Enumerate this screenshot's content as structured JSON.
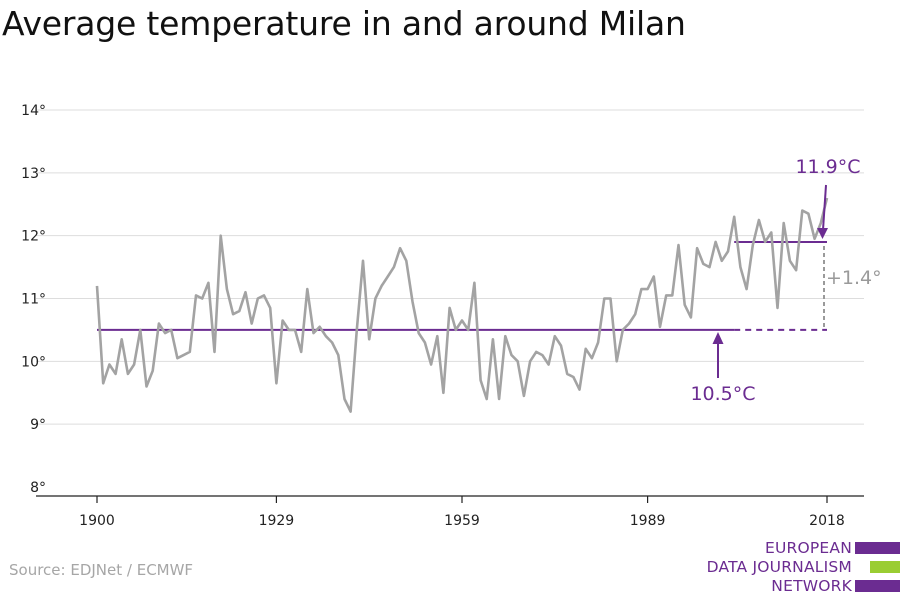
{
  "title": "Average temperature in and around Milan",
  "source": "Source: EDJNet / ECMWF",
  "logo": {
    "lines": [
      "EUROPEAN",
      "DATA JOURNALISM",
      "NETWORK"
    ],
    "colors": [
      "#6b2c91",
      "#9acd32",
      "#6b2c91"
    ]
  },
  "colors": {
    "series": "#a3a3a3",
    "accent": "#6b2c91",
    "diff": "#9a9a9a",
    "grid": "#dddddd",
    "axis": "#222222"
  },
  "chart_data": {
    "type": "line",
    "title": "Average temperature in and around Milan",
    "xlabel": "",
    "ylabel": "",
    "xlim": [
      1900,
      2018
    ],
    "ylim": [
      8,
      14
    ],
    "x_ticks": [
      "1900",
      "1929",
      "1959",
      "1989",
      "2018"
    ],
    "y_ticks": [
      "8°",
      "9°",
      "10°",
      "11°",
      "12°",
      "13°",
      "14°"
    ],
    "grid": true,
    "x": [
      1900,
      1901,
      1902,
      1903,
      1904,
      1905,
      1906,
      1907,
      1908,
      1909,
      1910,
      1911,
      1912,
      1913,
      1914,
      1915,
      1916,
      1917,
      1918,
      1919,
      1920,
      1921,
      1922,
      1923,
      1924,
      1925,
      1926,
      1927,
      1928,
      1929,
      1930,
      1931,
      1932,
      1933,
      1934,
      1935,
      1936,
      1937,
      1938,
      1939,
      1940,
      1941,
      1942,
      1943,
      1944,
      1945,
      1946,
      1947,
      1948,
      1949,
      1950,
      1951,
      1952,
      1953,
      1954,
      1955,
      1956,
      1957,
      1958,
      1959,
      1960,
      1961,
      1962,
      1963,
      1964,
      1965,
      1966,
      1967,
      1968,
      1969,
      1970,
      1971,
      1972,
      1973,
      1974,
      1975,
      1976,
      1977,
      1978,
      1979,
      1980,
      1981,
      1982,
      1983,
      1984,
      1985,
      1986,
      1987,
      1988,
      1989,
      1990,
      1991,
      1992,
      1993,
      1994,
      1995,
      1996,
      1997,
      1998,
      1999,
      2000,
      2001,
      2002,
      2003,
      2004,
      2005,
      2006,
      2007,
      2008,
      2009,
      2010,
      2011,
      2012,
      2013,
      2014,
      2015,
      2016,
      2017,
      2018
    ],
    "values": [
      11.2,
      9.65,
      9.95,
      9.8,
      10.35,
      9.8,
      9.95,
      10.5,
      9.6,
      9.85,
      10.6,
      10.45,
      10.5,
      10.05,
      10.1,
      10.15,
      11.05,
      11.0,
      11.25,
      10.15,
      12.0,
      11.15,
      10.75,
      10.8,
      11.1,
      10.6,
      11.0,
      11.05,
      10.85,
      9.65,
      10.65,
      10.5,
      10.5,
      10.15,
      11.15,
      10.45,
      10.55,
      10.4,
      10.3,
      10.1,
      9.4,
      9.2,
      10.5,
      11.6,
      10.35,
      11.0,
      11.2,
      11.35,
      11.5,
      11.8,
      11.6,
      10.95,
      10.45,
      10.3,
      9.95,
      10.4,
      9.5,
      10.85,
      10.5,
      10.65,
      10.5,
      11.25,
      9.7,
      9.4,
      10.35,
      9.4,
      10.4,
      10.1,
      10.0,
      9.45,
      10.0,
      10.15,
      10.1,
      9.95,
      10.4,
      10.25,
      9.8,
      9.75,
      9.55,
      10.2,
      10.05,
      10.3,
      11.0,
      11.0,
      10.0,
      10.5,
      10.6,
      10.75,
      11.15,
      11.15,
      11.35,
      10.55,
      11.05,
      11.05,
      11.85,
      10.9,
      10.7,
      11.8,
      11.55,
      11.5,
      11.9,
      11.6,
      11.75,
      12.3,
      11.5,
      11.15,
      11.85,
      12.25,
      11.9,
      12.05,
      10.85,
      12.2,
      11.6,
      11.45,
      12.4,
      12.35,
      11.95,
      12.2,
      12.6
    ],
    "reference_lines": [
      {
        "label": "10.5°C",
        "value": 10.5,
        "from": 1900,
        "to": 2018,
        "solid_until": 2003
      },
      {
        "label": "11.9°C",
        "value": 11.9,
        "from": 2003,
        "to": 2018
      }
    ],
    "difference_label": "+1.4°"
  }
}
